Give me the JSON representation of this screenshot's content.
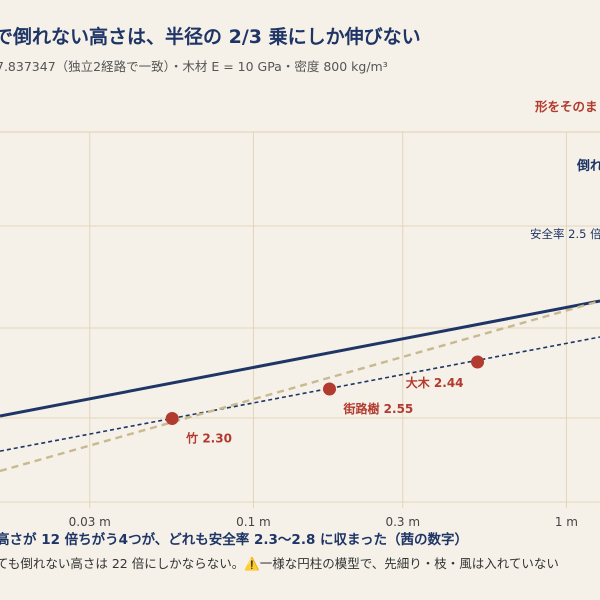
{
  "title": "で倒れない高さは、半径の 2/3 乗にしか伸びない",
  "subtitle": "7.837347（独立2経路で一致）・木材 E = 10 GPa・密度 800 kg/m³",
  "top_right_label": "形をそのま",
  "footer_headline": "高さが 12 倍ちがう4つが、どれも安全率 2.3〜2.8 に収まった（茜の数字）",
  "footer_note": "ても倒れない高さは 22 倍にしかならない。⚠️一様な円柱の模型で、先細り・枝・風は入れていない",
  "colors": {
    "background": "#f5f1e8",
    "grid": "#e3d5bb",
    "navy": "#1e3566",
    "tan": "#c9b98f",
    "red": "#b23a2e"
  },
  "chart_data": {
    "type": "line",
    "x_scale": "log",
    "y_scale": "log",
    "x_ticks": [
      {
        "value": 0.03,
        "label": "0.03 m"
      },
      {
        "value": 0.1,
        "label": "0.1 m"
      },
      {
        "value": 0.3,
        "label": "0.3 m"
      },
      {
        "value": 1,
        "label": "1 m"
      }
    ],
    "xlim": [
      0.0155,
      1.28
    ],
    "series": [
      {
        "name": "倒れ",
        "style": "solid",
        "color": "#1e3566",
        "x": [
          0.0155,
          1.28
        ],
        "rel_y": [
          0.0,
          1.2778
        ]
      },
      {
        "name": "安全率 2.5 倍",
        "style": "dashed",
        "color": "#1e3566",
        "x": [
          0.0155,
          1.28
        ],
        "rel_y": [
          -0.3903,
          0.8778
        ]
      },
      {
        "name": "",
        "style": "dashed",
        "color": "#c9b98f",
        "x": [
          0.0155,
          1.28
        ],
        "rel_y": [
          -0.6111,
          1.2778
        ]
      }
    ],
    "points": [
      {
        "label": "竹 2.30",
        "x": 0.055,
        "rel_y": -0.0278
      },
      {
        "label": "街路樹 2.55",
        "x": 0.175,
        "rel_y": 0.3
      },
      {
        "label": "大木 2.44",
        "x": 0.52,
        "rel_y": 0.6
      }
    ]
  }
}
